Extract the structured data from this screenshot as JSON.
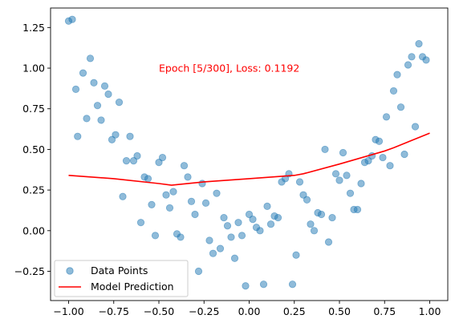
{
  "chart_data": {
    "type": "scatter",
    "title": "",
    "xlabel": "",
    "ylabel": "",
    "xlim": [
      -1.1,
      1.1
    ],
    "ylim": [
      -0.43,
      1.37
    ],
    "xticks": [
      -1.0,
      -0.75,
      -0.5,
      -0.25,
      0.0,
      0.25,
      0.5,
      0.75,
      1.0
    ],
    "xtick_labels": [
      "−1.00",
      "−0.75",
      "−0.50",
      "−0.25",
      "0.00",
      "0.25",
      "0.50",
      "0.75",
      "1.00"
    ],
    "yticks": [
      -0.25,
      0.0,
      0.25,
      0.5,
      0.75,
      1.0,
      1.25
    ],
    "ytick_labels": [
      "−0.25",
      "0.00",
      "0.25",
      "0.50",
      "0.75",
      "1.00",
      "1.25"
    ],
    "grid": false,
    "legend_position": "lower-left",
    "annotation": {
      "text": "Epoch [5/300], Loss: 0.1192",
      "x": -0.5,
      "y": 1.0,
      "color": "#ff0000"
    },
    "series": [
      {
        "name": "Data Points",
        "kind": "scatter",
        "color": "#1f77b4",
        "alpha": 0.5,
        "points": [
          [
            -1.0,
            1.29
          ],
          [
            -0.98,
            1.3
          ],
          [
            -0.96,
            0.87
          ],
          [
            -0.95,
            0.58
          ],
          [
            -0.92,
            0.97
          ],
          [
            -0.9,
            0.69
          ],
          [
            -0.88,
            1.06
          ],
          [
            -0.86,
            0.91
          ],
          [
            -0.84,
            0.77
          ],
          [
            -0.82,
            0.68
          ],
          [
            -0.8,
            0.89
          ],
          [
            -0.78,
            0.84
          ],
          [
            -0.76,
            0.56
          ],
          [
            -0.74,
            0.59
          ],
          [
            -0.72,
            0.79
          ],
          [
            -0.7,
            0.21
          ],
          [
            -0.68,
            0.43
          ],
          [
            -0.66,
            0.58
          ],
          [
            -0.64,
            0.43
          ],
          [
            -0.62,
            0.46
          ],
          [
            -0.6,
            0.05
          ],
          [
            -0.58,
            0.33
          ],
          [
            -0.56,
            0.32
          ],
          [
            -0.54,
            0.16
          ],
          [
            -0.52,
            -0.03
          ],
          [
            -0.5,
            0.42
          ],
          [
            -0.48,
            0.45
          ],
          [
            -0.46,
            0.22
          ],
          [
            -0.44,
            0.14
          ],
          [
            -0.42,
            0.24
          ],
          [
            -0.4,
            -0.02
          ],
          [
            -0.38,
            -0.04
          ],
          [
            -0.36,
            0.4
          ],
          [
            -0.34,
            0.33
          ],
          [
            -0.32,
            0.18
          ],
          [
            -0.3,
            0.1
          ],
          [
            -0.28,
            -0.25
          ],
          [
            -0.26,
            0.29
          ],
          [
            -0.24,
            0.17
          ],
          [
            -0.22,
            -0.06
          ],
          [
            -0.2,
            -0.14
          ],
          [
            -0.18,
            0.23
          ],
          [
            -0.16,
            -0.11
          ],
          [
            -0.14,
            0.08
          ],
          [
            -0.12,
            0.03
          ],
          [
            -0.1,
            -0.04
          ],
          [
            -0.08,
            -0.17
          ],
          [
            -0.06,
            0.05
          ],
          [
            -0.04,
            -0.03
          ],
          [
            -0.02,
            -0.34
          ],
          [
            0.0,
            0.1
          ],
          [
            0.02,
            0.07
          ],
          [
            0.04,
            0.02
          ],
          [
            0.06,
            0.0
          ],
          [
            0.08,
            -0.33
          ],
          [
            0.1,
            0.15
          ],
          [
            0.12,
            0.04
          ],
          [
            0.14,
            0.09
          ],
          [
            0.16,
            0.08
          ],
          [
            0.18,
            0.3
          ],
          [
            0.2,
            0.32
          ],
          [
            0.22,
            0.35
          ],
          [
            0.24,
            -0.33
          ],
          [
            0.26,
            -0.15
          ],
          [
            0.28,
            0.3
          ],
          [
            0.3,
            0.22
          ],
          [
            0.32,
            0.19
          ],
          [
            0.34,
            0.04
          ],
          [
            0.36,
            0.0
          ],
          [
            0.38,
            0.11
          ],
          [
            0.4,
            0.1
          ],
          [
            0.42,
            0.5
          ],
          [
            0.44,
            -0.07
          ],
          [
            0.46,
            0.08
          ],
          [
            0.48,
            0.35
          ],
          [
            0.5,
            0.31
          ],
          [
            0.52,
            0.48
          ],
          [
            0.54,
            0.34
          ],
          [
            0.56,
            0.23
          ],
          [
            0.58,
            0.13
          ],
          [
            0.6,
            0.13
          ],
          [
            0.62,
            0.29
          ],
          [
            0.64,
            0.42
          ],
          [
            0.66,
            0.43
          ],
          [
            0.68,
            0.46
          ],
          [
            0.7,
            0.56
          ],
          [
            0.72,
            0.55
          ],
          [
            0.74,
            0.45
          ],
          [
            0.76,
            0.7
          ],
          [
            0.78,
            0.4
          ],
          [
            0.8,
            0.86
          ],
          [
            0.82,
            0.96
          ],
          [
            0.84,
            0.76
          ],
          [
            0.86,
            0.47
          ],
          [
            0.88,
            1.02
          ],
          [
            0.9,
            1.07
          ],
          [
            0.92,
            0.64
          ],
          [
            0.94,
            1.15
          ],
          [
            0.96,
            1.07
          ],
          [
            0.98,
            1.05
          ]
        ]
      },
      {
        "name": "Model Prediction",
        "kind": "line",
        "color": "#ff0000",
        "points": [
          [
            -1.0,
            0.34
          ],
          [
            -0.75,
            0.32
          ],
          [
            -0.5,
            0.29
          ],
          [
            -0.43,
            0.28
          ],
          [
            -0.25,
            0.3
          ],
          [
            0.0,
            0.32
          ],
          [
            0.25,
            0.34
          ],
          [
            0.3,
            0.35
          ],
          [
            0.5,
            0.41
          ],
          [
            0.75,
            0.49
          ],
          [
            0.8,
            0.51
          ],
          [
            1.0,
            0.6
          ]
        ]
      }
    ]
  }
}
